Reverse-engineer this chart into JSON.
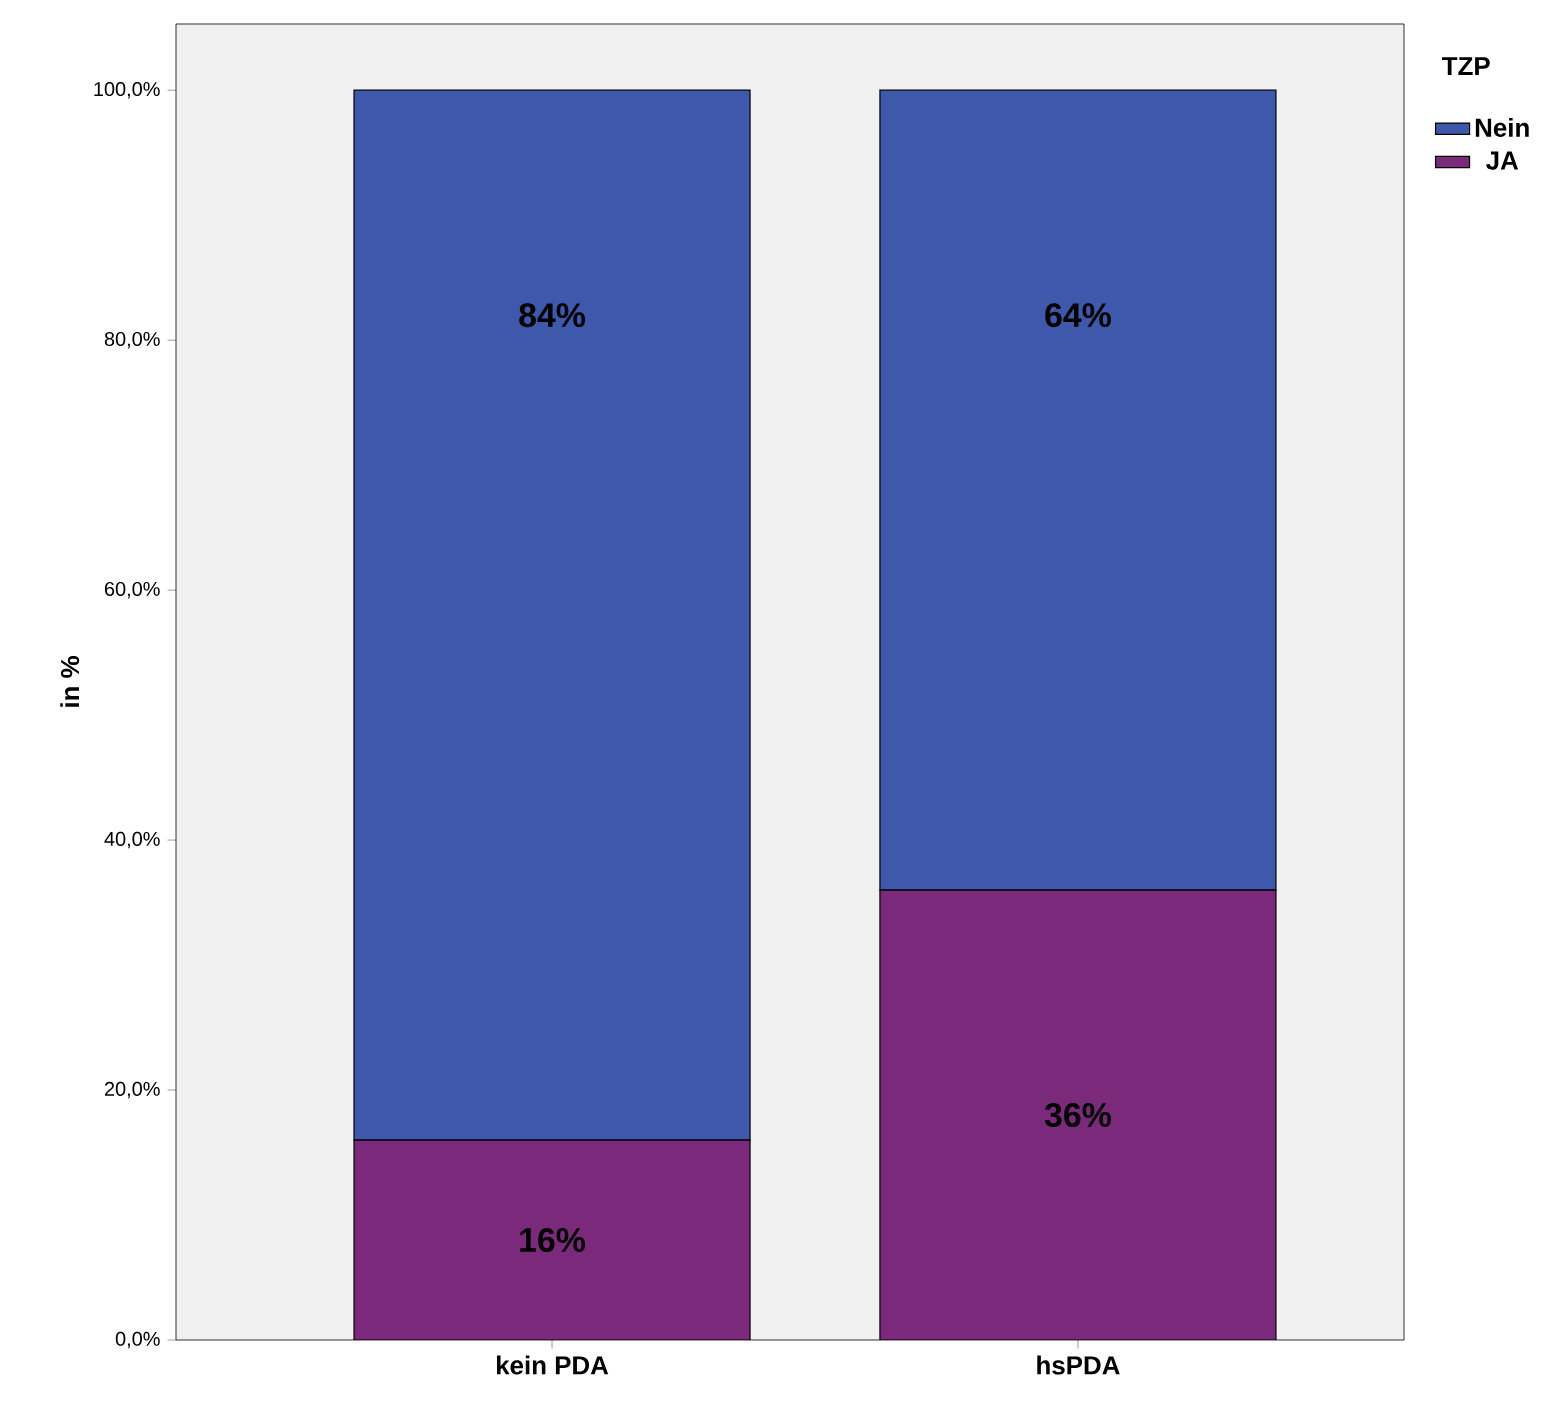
{
  "chart_data": {
    "type": "bar",
    "stacked": true,
    "ylabel": "in %",
    "legend_title": "TZP",
    "legend": "top right",
    "categories": [
      "kein PDA",
      "hsPDA"
    ],
    "series": [
      {
        "name": "JA",
        "color": "#7b2a7b",
        "values": [
          16,
          36
        ],
        "value_labels": [
          "16%",
          "36%"
        ]
      },
      {
        "name": "Nein",
        "color": "#3e58ac",
        "values": [
          84,
          64
        ],
        "value_labels": [
          "84%",
          "64%"
        ]
      }
    ],
    "ylim": [
      0,
      105.3
    ],
    "yticks": [
      {
        "value": 0,
        "label": "0,0%"
      },
      {
        "value": 20,
        "label": "20,0%"
      },
      {
        "value": 40,
        "label": "40,0%"
      },
      {
        "value": 60,
        "label": "60,0%"
      },
      {
        "value": 80,
        "label": "80,0%"
      },
      {
        "value": 100,
        "label": "100,0%"
      }
    ]
  }
}
